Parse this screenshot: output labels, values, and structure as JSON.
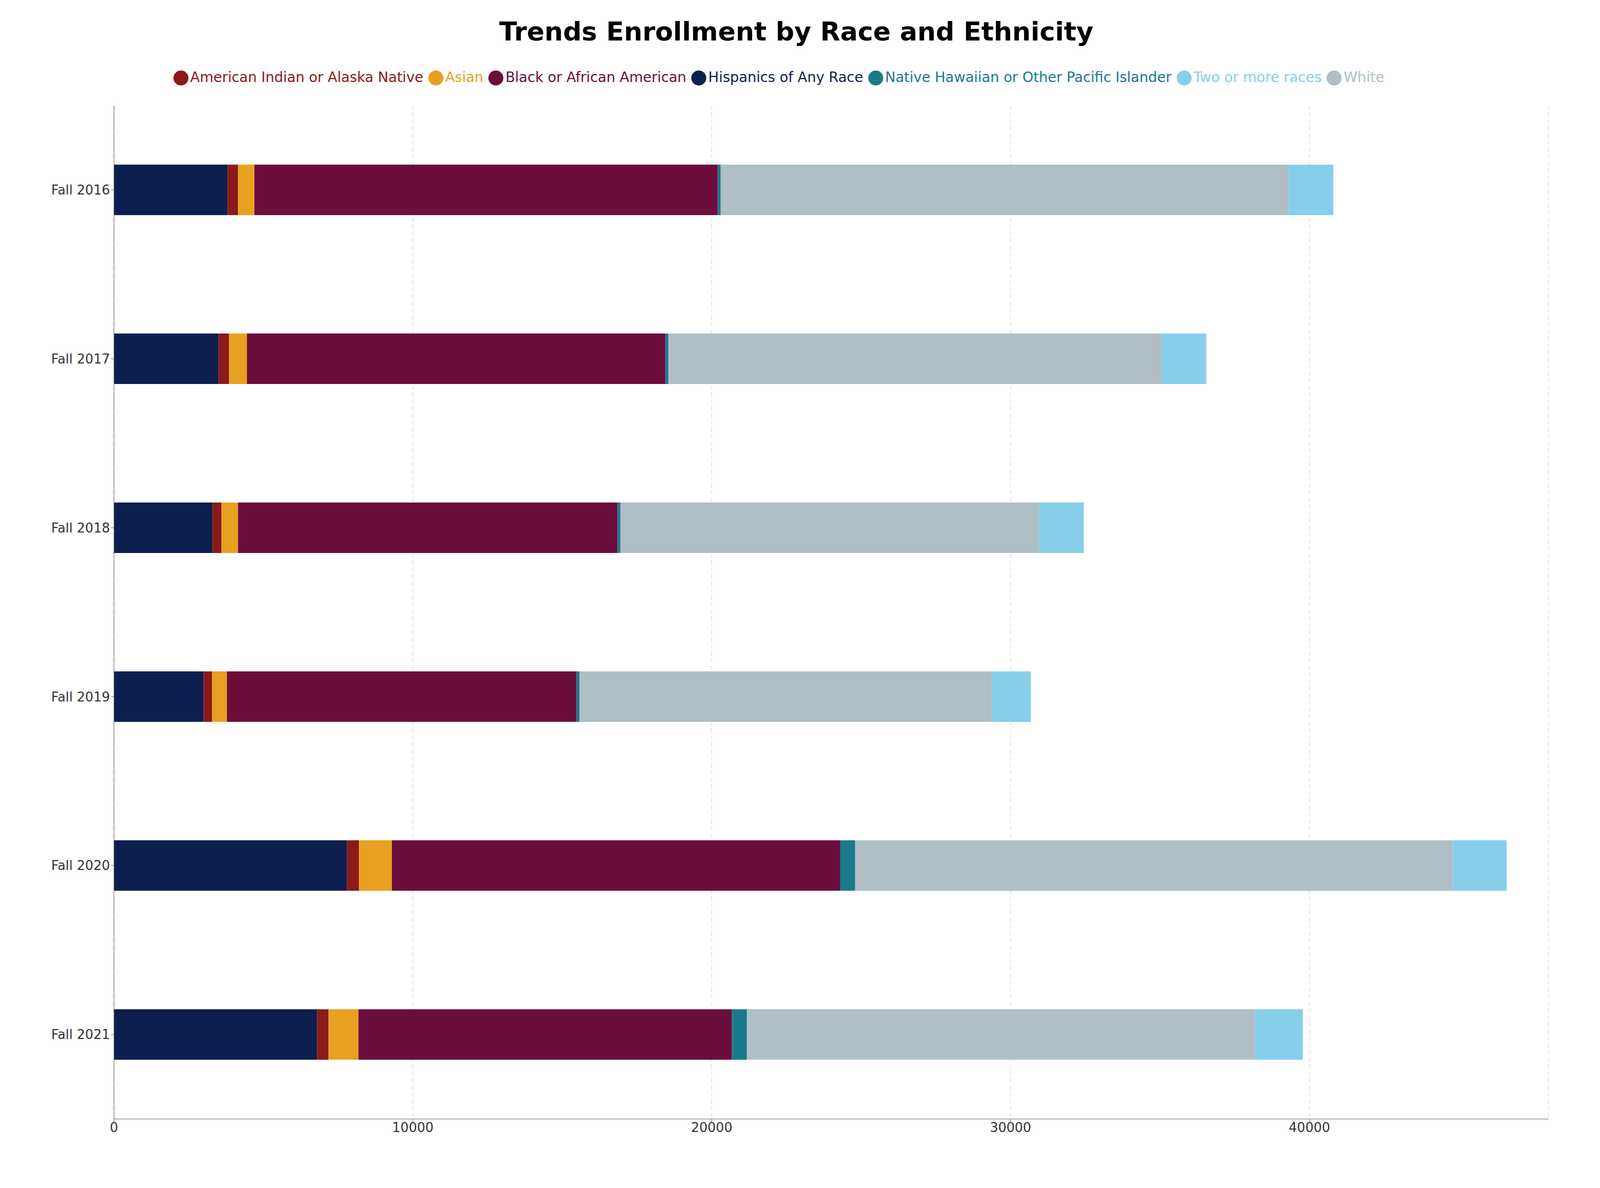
{
  "chart_data": {
    "type": "bar",
    "orientation": "horizontal",
    "stacked": true,
    "title": "Trends Enrollment by Race and Ethnicity",
    "categories": [
      "Fall 2016",
      "Fall 2017",
      "Fall 2018",
      "Fall 2019",
      "Fall 2020",
      "Fall 2021"
    ],
    "series": [
      {
        "name": "Hispanics of Any Race",
        "color": "#0d1f4e",
        "values": [
          3800,
          3500,
          3300,
          3000,
          7800,
          6800
        ]
      },
      {
        "name": "American Indian or Alaska Native",
        "color": "#8b1a1a",
        "values": [
          350,
          350,
          300,
          280,
          400,
          380
        ]
      },
      {
        "name": "Asian",
        "color": "#e8a020",
        "values": [
          550,
          600,
          550,
          500,
          1100,
          1000
        ]
      },
      {
        "name": "Black or African American",
        "color": "#6b0e3c",
        "values": [
          15500,
          14000,
          12700,
          11700,
          15000,
          12500
        ]
      },
      {
        "name": "Native Hawaiian or Other Pacific Islander",
        "color": "#1a7a8a",
        "values": [
          100,
          100,
          100,
          100,
          500,
          500
        ]
      },
      {
        "name": "White",
        "color": "#b0bec5",
        "values": [
          19000,
          16500,
          14000,
          13800,
          20000,
          17000
        ]
      },
      {
        "name": "Two or more races",
        "color": "#87ceeb",
        "values": [
          1500,
          1500,
          1500,
          1300,
          1800,
          1600
        ]
      }
    ],
    "xlim": [
      0,
      48000
    ],
    "xticks": [
      0,
      10000,
      20000,
      30000,
      40000
    ],
    "grid": true,
    "legend": "top"
  }
}
